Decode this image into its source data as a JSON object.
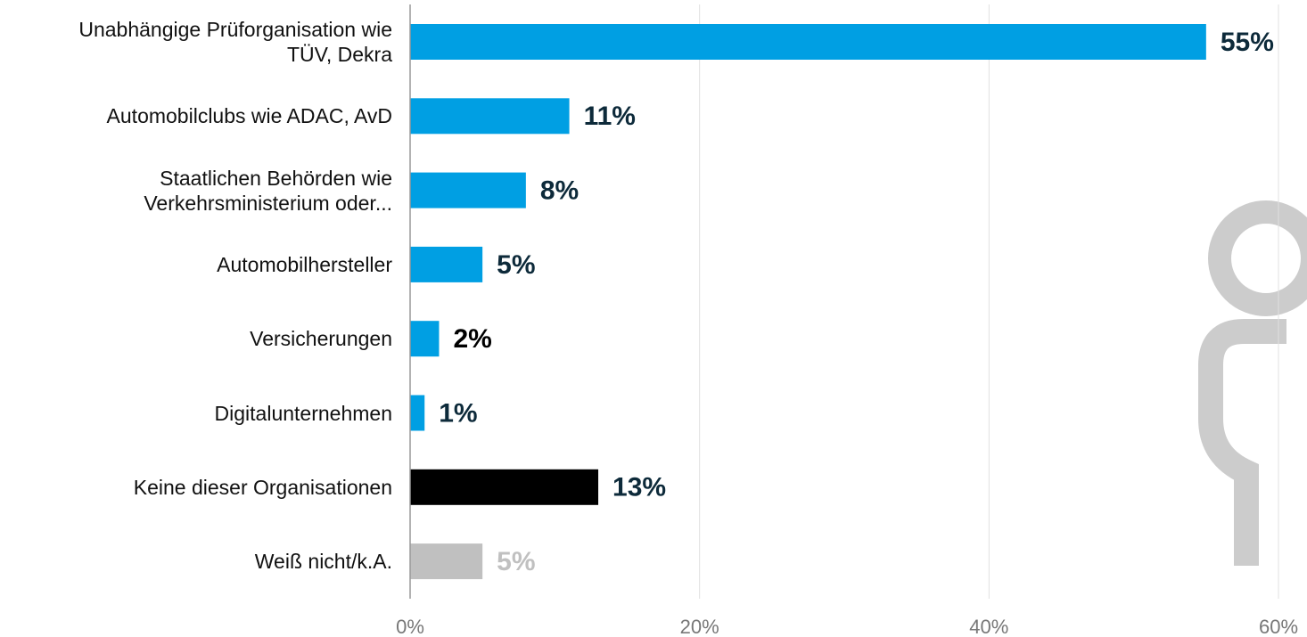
{
  "chart_data": {
    "type": "bar",
    "orientation": "horizontal",
    "categories": [
      "Unabhängige Prüforganisation wie\nTÜV, Dekra",
      "Automobilclubs wie ADAC, AvD",
      "Staatlichen Behörden wie\nVerkehrsministerium oder...",
      "Automobilhersteller",
      "Versicherungen",
      "Digitalunternehmen",
      "Keine dieser Organisationen",
      "Weiß nicht/k.A."
    ],
    "values": [
      55,
      11,
      8,
      5,
      2,
      1,
      13,
      5
    ],
    "value_labels": [
      "55%",
      "11%",
      "8%",
      "5%",
      "2%",
      "1%",
      "13%",
      "5%"
    ],
    "colors": [
      "#009fe3",
      "#009fe3",
      "#009fe3",
      "#009fe3",
      "#009fe3",
      "#009fe3",
      "#000000",
      "#c0c0c0"
    ],
    "label_colors": [
      "#0d2a3a",
      "#0d2a3a",
      "#0d2a3a",
      "#0d2a3a",
      "#000000",
      "#0d2a3a",
      "#0d2a3a",
      "#c0c0c0"
    ],
    "xlim": [
      0,
      60
    ],
    "xticks": [
      {
        "value": 0,
        "label": "0%"
      },
      {
        "value": 20,
        "label": "20%"
      },
      {
        "value": 40,
        "label": "40%"
      },
      {
        "value": 60,
        "label": "60%"
      }
    ],
    "grid": true
  }
}
